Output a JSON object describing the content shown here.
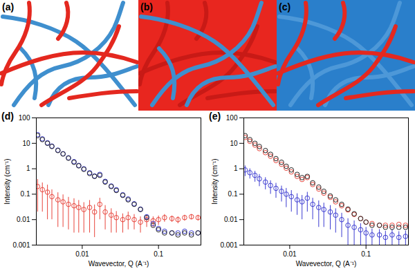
{
  "panels": [
    {
      "label": "(a)"
    },
    {
      "label": "(b)"
    },
    {
      "label": "(c)"
    }
  ],
  "chart_data": [
    {
      "type": "scatter",
      "title": "(d)",
      "x_label": "Wavevector, Q (A⁻¹)",
      "y_label": "Intensity (cm⁻¹)",
      "log": true,
      "xlim": [
        0.0025,
        0.36
      ],
      "xticks": [
        0.01,
        0.1
      ],
      "ylim": [
        0.001,
        100
      ],
      "yticks": [
        0.001,
        0.01,
        0.1,
        1,
        10,
        100
      ],
      "x": [
        0.0026,
        0.003,
        0.0035,
        0.004,
        0.0048,
        0.0056,
        0.0066,
        0.0078,
        0.009,
        0.0105,
        0.0125,
        0.0145,
        0.017,
        0.02,
        0.024,
        0.028,
        0.034,
        0.04,
        0.048,
        0.058,
        0.07,
        0.085,
        0.1,
        0.12,
        0.15,
        0.18,
        0.22,
        0.27,
        0.33
      ],
      "series": [
        {
          "color": "#e8453c",
          "marker": "circle",
          "values": [
            0.2,
            0.15,
            0.12,
            0.08,
            0.06,
            0.05,
            0.04,
            0.035,
            0.03,
            0.025,
            0.03,
            0.02,
            0.04,
            0.02,
            0.015,
            0.012,
            0.01,
            0.012,
            0.01,
            0.008,
            0.01,
            0.009,
            0.01,
            0.012,
            0.011,
            0.01,
            0.012,
            0.013,
            0.012
          ],
          "errors": [
            0.18,
            0.13,
            0.11,
            0.07,
            0.055,
            0.045,
            0.036,
            0.032,
            0.027,
            0.022,
            0.027,
            0.018,
            0.03,
            0.016,
            0.012,
            0.009,
            0.007,
            0.008,
            0.006,
            0.005,
            0.005,
            0.004,
            0.004,
            0.004,
            0.003,
            0.003,
            0.003,
            0.003,
            0.003
          ]
        },
        {
          "color": "#3b3bd1",
          "marker": "circle",
          "values": [
            22,
            15,
            10.5,
            7.8,
            5.4,
            3.9,
            2.7,
            1.9,
            1.35,
            1.0,
            0.7,
            0.52,
            0.6,
            0.32,
            0.21,
            0.15,
            0.095,
            0.065,
            0.042,
            0.026,
            0.013,
            0.007,
            0.0045,
            0.0035,
            0.003,
            0.003,
            0.0035,
            0.003,
            0.003
          ]
        },
        {
          "color": "#222222",
          "marker": "circle",
          "values": [
            20,
            14,
            10,
            7.5,
            5.2,
            3.8,
            2.6,
            1.8,
            1.3,
            0.95,
            0.65,
            0.5,
            0.55,
            0.3,
            0.2,
            0.14,
            0.09,
            0.06,
            0.04,
            0.025,
            0.012,
            0.006,
            0.004,
            0.003,
            0.003,
            0.0025,
            0.003,
            0.0025,
            0.003
          ]
        }
      ]
    },
    {
      "type": "scatter",
      "title": "(e)",
      "x_label": "Wavevector, Q (A⁻¹)",
      "y_label": "Intensity (cm⁻¹)",
      "log": true,
      "xlim": [
        0.0025,
        0.36
      ],
      "xticks": [
        0.01,
        0.1
      ],
      "ylim": [
        0.001,
        100
      ],
      "yticks": [
        0.001,
        0.01,
        0.1,
        1,
        10,
        100
      ],
      "x": [
        0.0026,
        0.003,
        0.0035,
        0.004,
        0.0048,
        0.0056,
        0.0066,
        0.0078,
        0.009,
        0.0105,
        0.0125,
        0.0145,
        0.017,
        0.02,
        0.024,
        0.028,
        0.034,
        0.04,
        0.048,
        0.058,
        0.07,
        0.085,
        0.1,
        0.12,
        0.15,
        0.18,
        0.22,
        0.27,
        0.33
      ],
      "series": [
        {
          "color": "#3b3bd1",
          "marker": "circle",
          "values": [
            0.9,
            0.7,
            0.55,
            0.4,
            0.3,
            0.22,
            0.17,
            0.13,
            0.1,
            0.08,
            0.06,
            0.05,
            0.07,
            0.04,
            0.03,
            0.025,
            0.02,
            0.015,
            0.01,
            0.006,
            0.005,
            0.004,
            0.003,
            0.0025,
            0.0025,
            0.002,
            0.0025,
            0.002,
            0.0022
          ],
          "errors": [
            0.4,
            0.3,
            0.25,
            0.2,
            0.15,
            0.12,
            0.1,
            0.08,
            0.07,
            0.06,
            0.045,
            0.04,
            0.05,
            0.03,
            0.025,
            0.02,
            0.016,
            0.012,
            0.008,
            0.005,
            0.004,
            0.003,
            0.002,
            0.0018,
            0.0016,
            0.0015,
            0.0015,
            0.0014,
            0.0014
          ]
        },
        {
          "color": "#e8453c",
          "marker": "circle",
          "values": [
            17,
            12,
            8.5,
            6.2,
            4.3,
            3.1,
            2.1,
            1.5,
            1.05,
            0.75,
            0.5,
            0.38,
            0.45,
            0.24,
            0.16,
            0.11,
            0.075,
            0.05,
            0.035,
            0.024,
            0.016,
            0.011,
            0.008,
            0.007,
            0.006,
            0.006,
            0.006,
            0.0065,
            0.006
          ]
        },
        {
          "color": "#222222",
          "marker": "circle",
          "values": [
            20,
            14,
            10,
            7.5,
            5.2,
            3.7,
            2.5,
            1.8,
            1.25,
            0.9,
            0.6,
            0.45,
            0.5,
            0.28,
            0.19,
            0.13,
            0.085,
            0.06,
            0.04,
            0.026,
            0.017,
            0.011,
            0.008,
            0.006,
            0.006,
            0.005,
            0.005,
            0.005,
            0.005
          ]
        }
      ]
    }
  ]
}
